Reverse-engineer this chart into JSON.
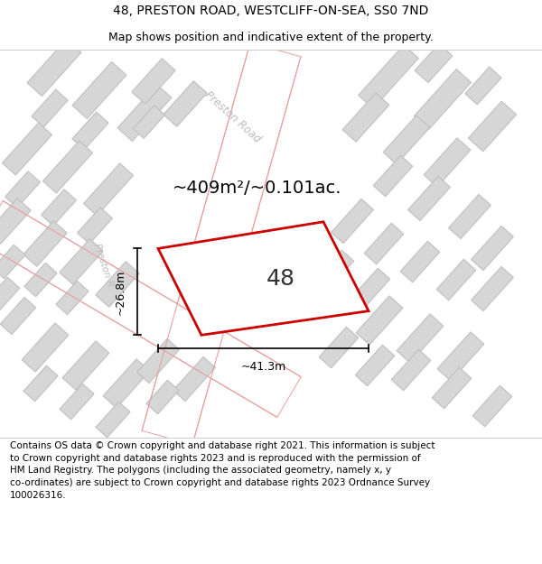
{
  "title": "48, PRESTON ROAD, WESTCLIFF-ON-SEA, SS0 7ND",
  "subtitle": "Map shows position and indicative extent of the property.",
  "area_label": "~409m²/~0.101ac.",
  "property_number": "48",
  "dim_width": "~41.3m",
  "dim_height": "~26.8m",
  "footer_text": "Contains OS data © Crown copyright and database right 2021. This information is subject\nto Crown copyright and database rights 2023 and is reproduced with the permission of\nHM Land Registry. The polygons (including the associated geometry, namely x, y\nco-ordinates) are subject to Crown copyright and database rights 2023 Ordnance Survey\n100026316.",
  "bg_color": "#efefef",
  "building_fill": "#d6d6d6",
  "building_edge": "#c0c0c0",
  "road_fill": "#ffffff",
  "road_stroke": "#e8a0a0",
  "property_stroke": "#cc0000",
  "property_fill": "#ffffff",
  "dim_color": "#000000",
  "road_label_color": "#bbbbbb",
  "text_color": "#000000",
  "white": "#ffffff",
  "title_fontsize": 10,
  "subtitle_fontsize": 9,
  "area_fontsize": 14,
  "prop_num_fontsize": 18,
  "dim_fontsize": 9,
  "footer_fontsize": 7.5
}
